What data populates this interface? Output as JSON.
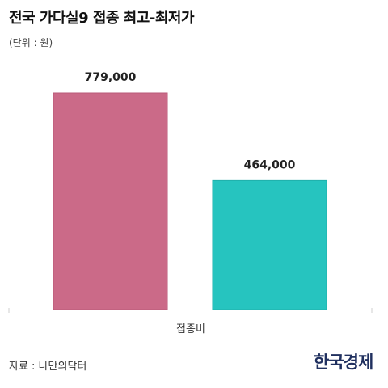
{
  "header": {
    "title": "전국 가다실9 접종 최고-최저가",
    "unit": "(단위 : 원)"
  },
  "chart_data": {
    "type": "bar",
    "categories": [
      "접종비"
    ],
    "series": [
      {
        "values": [
          779000
        ],
        "value_label": "779,000",
        "color": "#cb6a88"
      },
      {
        "values": [
          464000
        ],
        "value_label": "464,000",
        "color": "#26c4bf"
      }
    ],
    "ylim": [
      0,
      779000
    ],
    "grid": false
  },
  "footer": {
    "source": "자료 : 나만의닥터",
    "brand": "한국경제"
  }
}
